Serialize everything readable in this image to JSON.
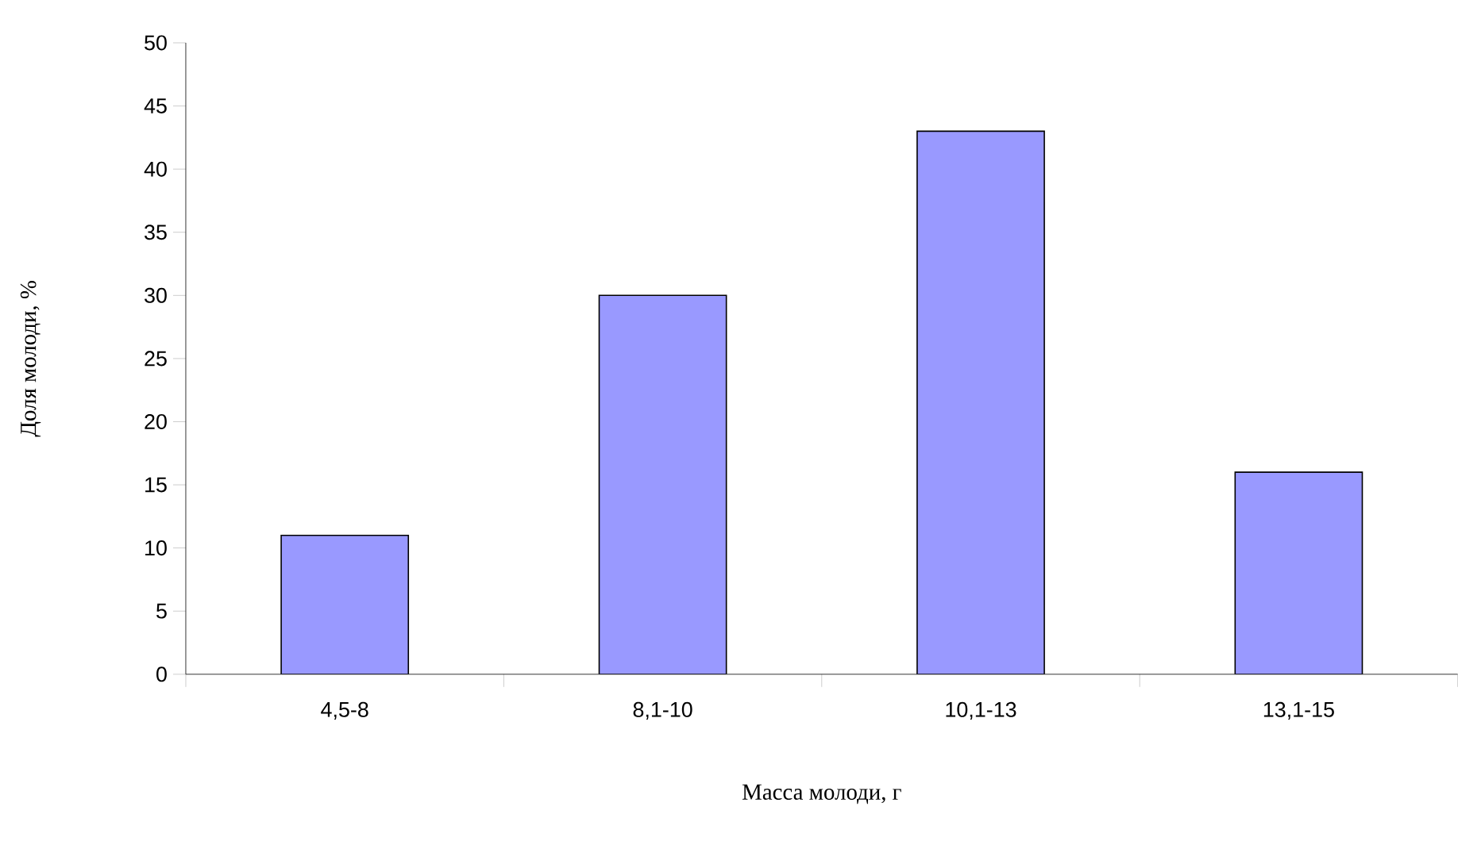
{
  "chart_data": {
    "type": "bar",
    "xlabel": "Масса молоди, г",
    "ylabel": "Доля молоди, %",
    "categories": [
      "4,5-8",
      "8,1-10",
      "10,1-13",
      "13,1-15"
    ],
    "values": [
      11,
      30,
      43,
      16
    ],
    "color": "#9999ff",
    "ylim": [
      0,
      50
    ],
    "yticks": [
      0,
      5,
      10,
      15,
      20,
      25,
      30,
      35,
      40,
      45,
      50
    ]
  }
}
